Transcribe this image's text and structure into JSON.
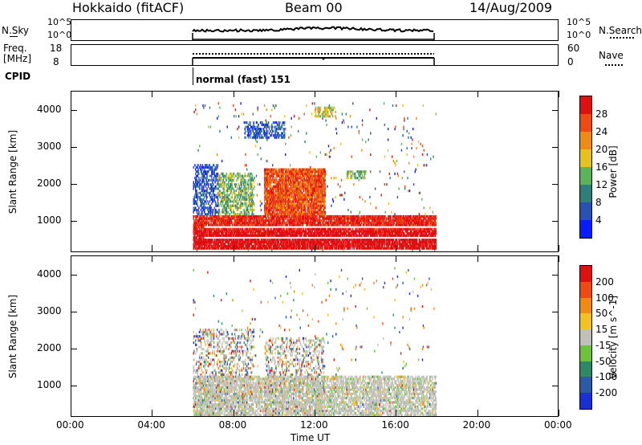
{
  "header": {
    "station": "Hokkaido (fitACF)",
    "beam": "Beam 00",
    "date": "14/Aug/2009"
  },
  "sky_panel": {
    "left_label": "N.Sky",
    "right_label": "N.Search",
    "left_ticks": [
      "10^5",
      "10^0"
    ],
    "right_ticks": [
      "10^5",
      "10^0"
    ]
  },
  "freq_panel": {
    "left_label_1": "Freq.",
    "left_label_2": "[MHz]",
    "right_label": "Nave",
    "left_ticks": [
      "18",
      "8"
    ],
    "right_ticks": [
      "60",
      "0"
    ]
  },
  "cpid": {
    "label": "CPID",
    "mode": "normal (fast) 151"
  },
  "time_axis": {
    "title": "Time UT",
    "ticks": [
      "00:00",
      "04:00",
      "08:00",
      "12:00",
      "16:00",
      "20:00",
      "00:00"
    ]
  },
  "chart_data": [
    {
      "type": "heatmap",
      "name": "power",
      "ylabel": "Slant Range [km]",
      "yticks": [
        1000,
        2000,
        3000,
        4000
      ],
      "ylim": [
        180,
        4500
      ],
      "xlim_hours": [
        0,
        24
      ],
      "data_window_hours": [
        6,
        18
      ],
      "colorbar": {
        "label": "Power [dB]",
        "ticks": [
          "4",
          "8",
          "12",
          "16",
          "20",
          "24",
          "28"
        ],
        "colors": [
          "#0a1cff",
          "#2a4fb5",
          "#2e7f78",
          "#5db35a",
          "#e6c21a",
          "#f08a10",
          "#ef4a12",
          "#e01010"
        ]
      },
      "echo_regions": [
        {
          "t0": 6.0,
          "t1": 18.0,
          "r0": 200,
          "r1": 1150,
          "level": 7
        },
        {
          "t0": 6.0,
          "t1": 7.2,
          "r0": 1100,
          "r1": 2500,
          "level": 1
        },
        {
          "t0": 7.0,
          "t1": 9.0,
          "r0": 1000,
          "r1": 2300,
          "level": 3
        },
        {
          "t0": 9.5,
          "t1": 12.5,
          "r0": 1100,
          "r1": 2400,
          "level": 6
        },
        {
          "t0": 8.5,
          "t1": 10.5,
          "r0": 3200,
          "r1": 3650,
          "level": 1
        },
        {
          "t0": 13.5,
          "t1": 14.5,
          "r0": 2100,
          "r1": 2350,
          "level": 3
        },
        {
          "t0": 12.0,
          "t1": 13.0,
          "r0": 3800,
          "r1": 4050,
          "level": 4
        }
      ]
    },
    {
      "type": "heatmap",
      "name": "velocity",
      "ylabel": "Slant Range [km]",
      "yticks": [
        1000,
        2000,
        3000,
        4000
      ],
      "ylim": [
        180,
        4500
      ],
      "xlim_hours": [
        0,
        24
      ],
      "data_window_hours": [
        6,
        18
      ],
      "colorbar": {
        "label": "Velocity [m s^-1]",
        "ticks": [
          "200",
          "100",
          "50",
          "15",
          "-15",
          "-50",
          "-100",
          "-200"
        ],
        "colors": [
          "#1a2fd6",
          "#2a5aa8",
          "#2e8a66",
          "#6cc23c",
          "#c0c0b8",
          "#f2c220",
          "#f08a10",
          "#ef4a12",
          "#e01010"
        ]
      }
    }
  ]
}
